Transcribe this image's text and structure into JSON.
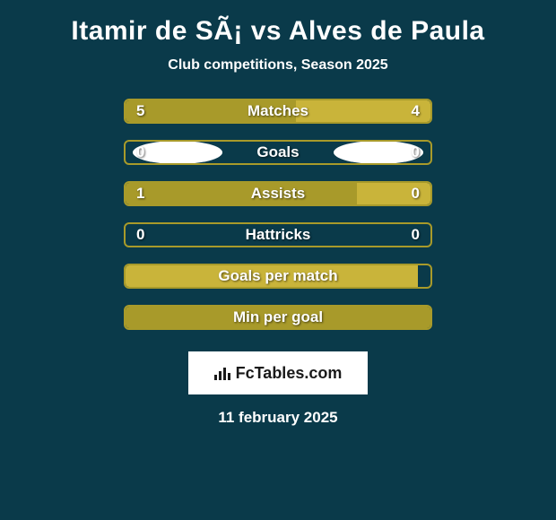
{
  "title": "Itamir de SÃ¡ vs Alves de Paula",
  "subtitle": "Club competitions, Season 2025",
  "colors": {
    "background": "#0a3a4a",
    "bar_primary": "#a89a2a",
    "bar_secondary": "#c9b43a",
    "bar_border": "#a89a2a",
    "text": "#ffffff",
    "avatar": "#ffffff",
    "logo_bg": "#ffffff",
    "logo_text": "#1a1a1a"
  },
  "layout": {
    "bar_track_width": 344,
    "bar_track_height": 28,
    "border_radius": 6,
    "avatar_width": 100,
    "avatar_height": 26
  },
  "stats": [
    {
      "label": "Matches",
      "left_value": "5",
      "right_value": "4",
      "left_fill_pct": 56,
      "right_fill_pct": 44,
      "left_fill_color": "#a89a2a",
      "right_fill_color": "#c9b43a",
      "show_left_avatar": true,
      "show_right_avatar": true
    },
    {
      "label": "Goals",
      "left_value": "0",
      "right_value": "0",
      "left_fill_pct": 0,
      "right_fill_pct": 0,
      "left_fill_color": "#a89a2a",
      "right_fill_color": "#c9b43a",
      "show_left_avatar": true,
      "show_right_avatar": true
    },
    {
      "label": "Assists",
      "left_value": "1",
      "right_value": "0",
      "left_fill_pct": 76,
      "right_fill_pct": 24,
      "left_fill_color": "#a89a2a",
      "right_fill_color": "#c9b43a",
      "show_left_avatar": false,
      "show_right_avatar": false
    },
    {
      "label": "Hattricks",
      "left_value": "0",
      "right_value": "0",
      "left_fill_pct": 0,
      "right_fill_pct": 0,
      "left_fill_color": "#a89a2a",
      "right_fill_color": "#c9b43a",
      "show_left_avatar": false,
      "show_right_avatar": false
    },
    {
      "label": "Goals per match",
      "left_value": "",
      "right_value": "",
      "left_fill_pct": 96,
      "right_fill_pct": 0,
      "left_fill_color": "#c9b43a",
      "right_fill_color": "#c9b43a",
      "show_left_avatar": false,
      "show_right_avatar": false
    },
    {
      "label": "Min per goal",
      "left_value": "",
      "right_value": "",
      "left_fill_pct": 100,
      "right_fill_pct": 0,
      "left_fill_color": "#a89a2a",
      "right_fill_color": "#c9b43a",
      "show_left_avatar": false,
      "show_right_avatar": false
    }
  ],
  "logo": {
    "text": "FcTables.com"
  },
  "date": "11 february 2025"
}
